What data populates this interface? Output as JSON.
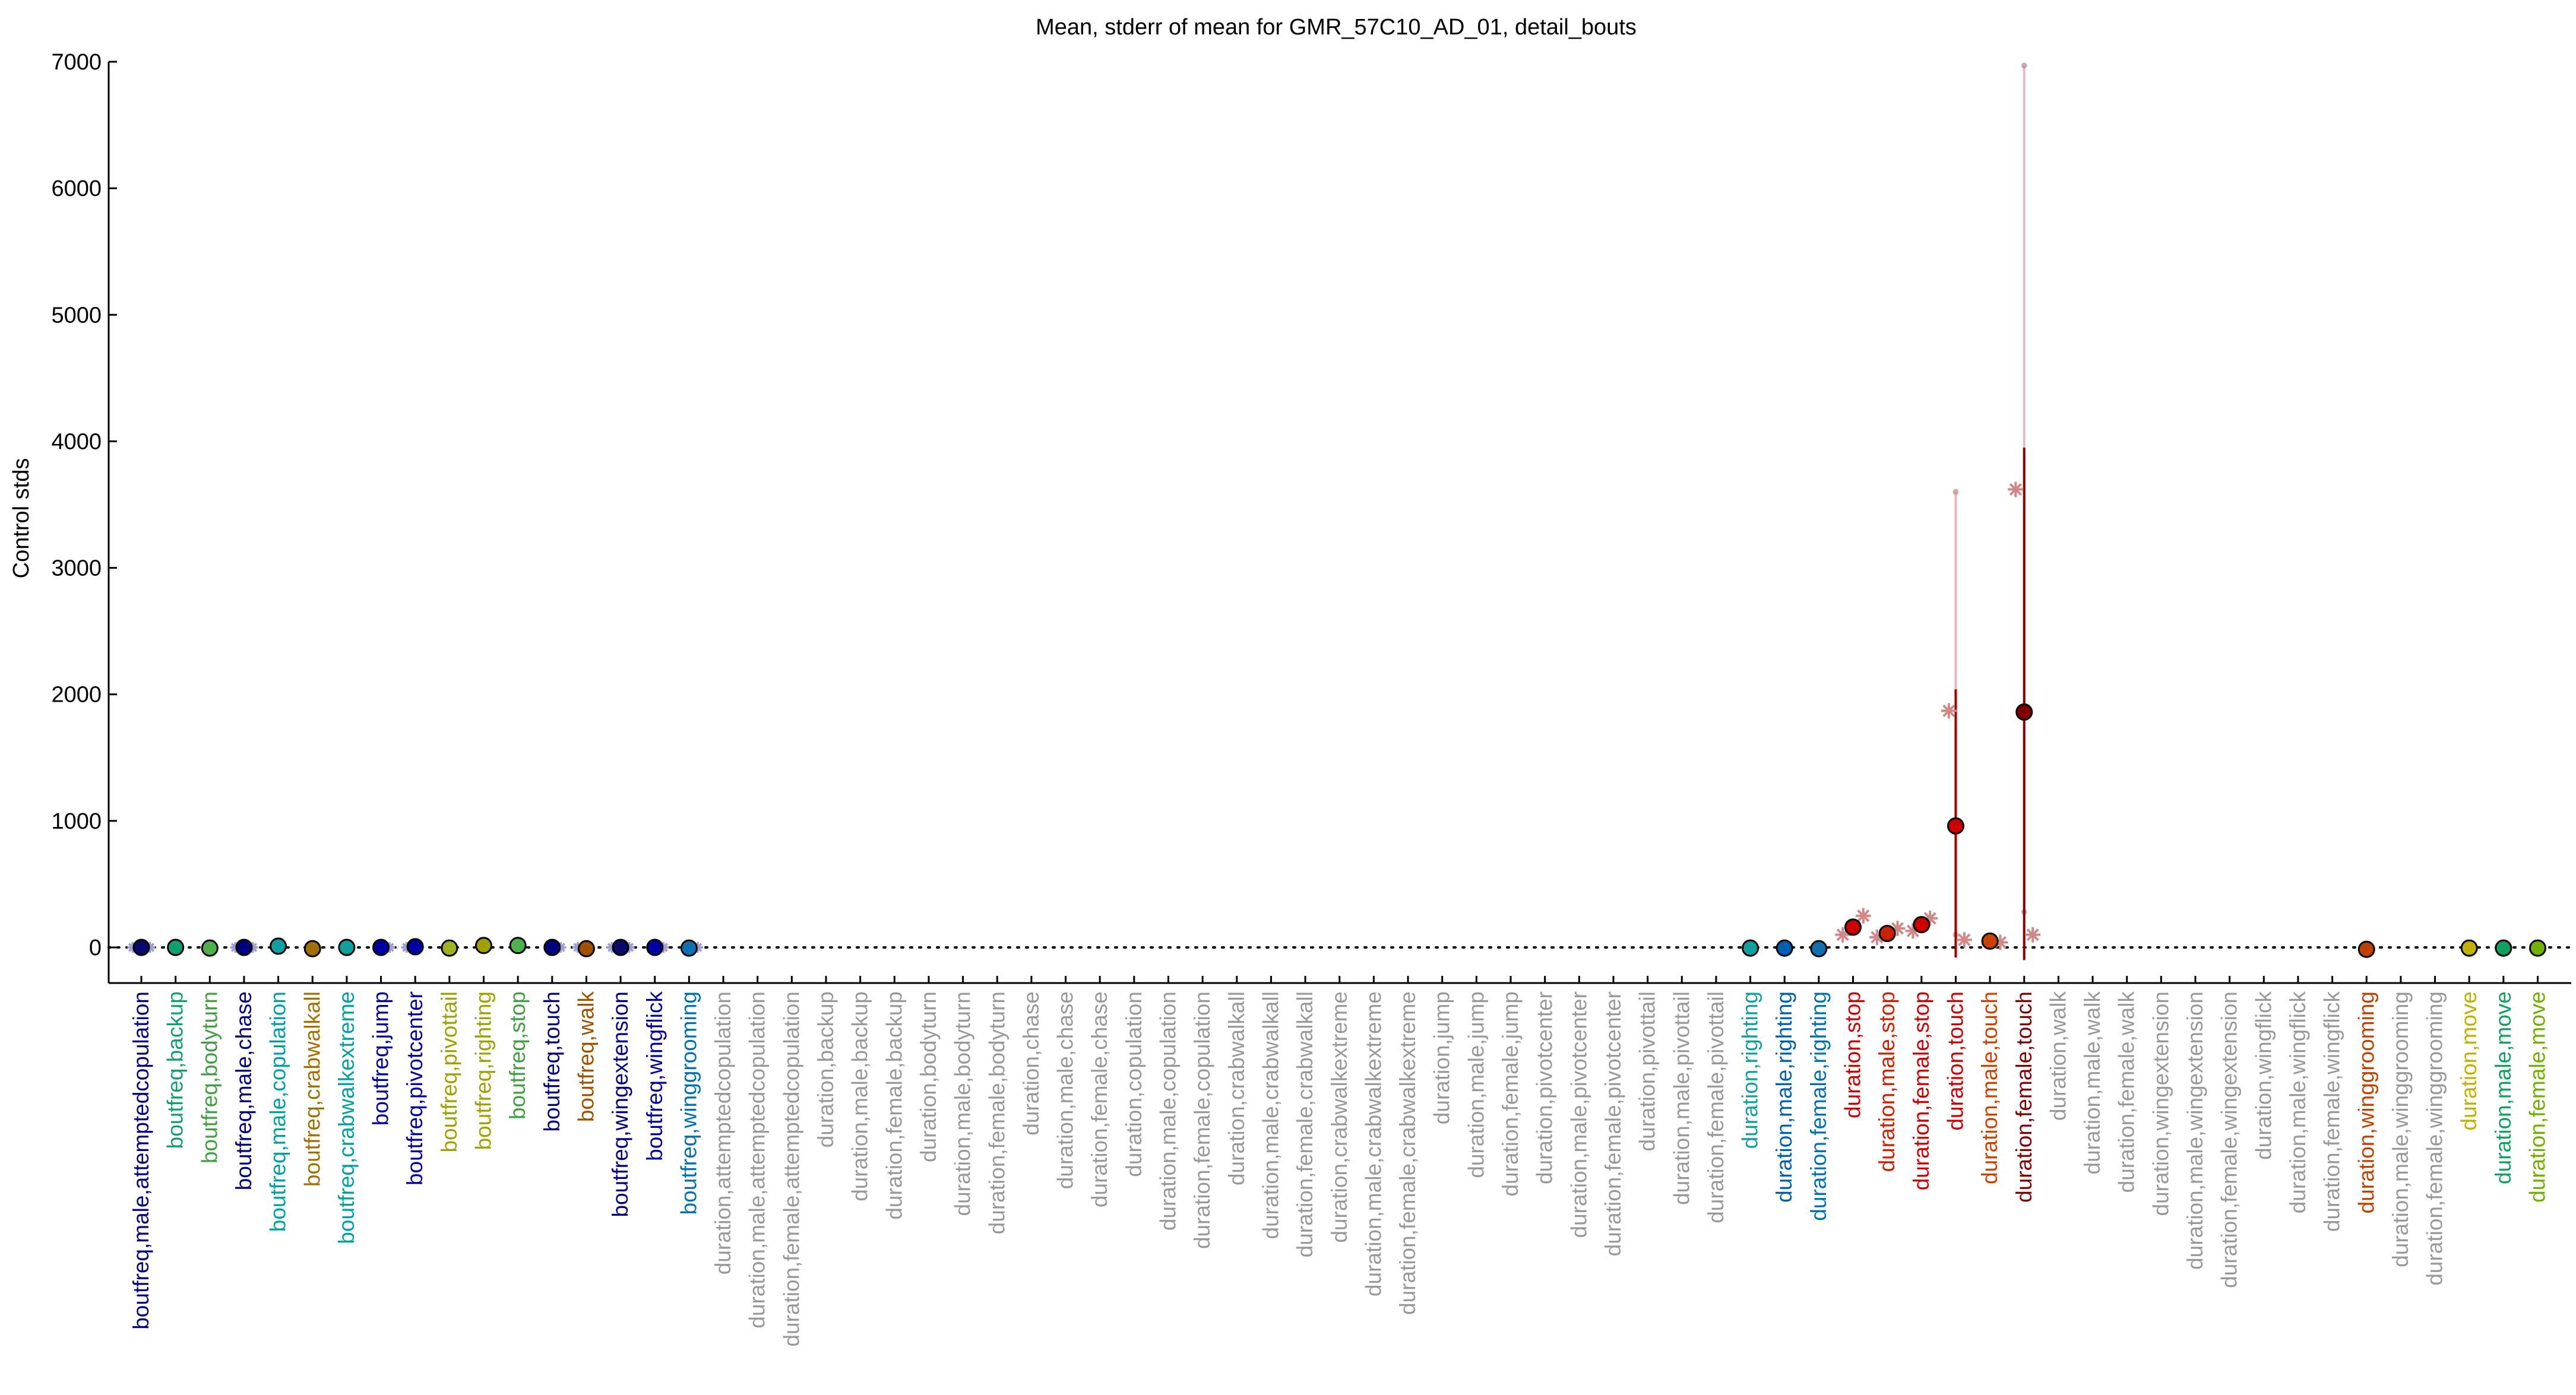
{
  "chart_data": {
    "type": "scatter",
    "title": "Mean, stderr of mean for GMR_57C10_AD_01, detail_bouts",
    "xlabel": "",
    "ylabel": "Control stds",
    "ylim": [
      -280,
      7000
    ],
    "yticks": [
      0,
      1000,
      2000,
      3000,
      4000,
      5000,
      6000,
      7000
    ],
    "reference_line": 0,
    "grid": false,
    "categories": [
      "boutfreq,male,attemptedcopulation",
      "boutfreq,backup",
      "boutfreq,bodyturn",
      "boutfreq,male,chase",
      "boutfreq,male,copulation",
      "boutfreq,crabwalkall",
      "boutfreq,crabwalkextreme",
      "boutfreq,jump",
      "boutfreq,pivotcenter",
      "boutfreq,pivottail",
      "boutfreq,righting",
      "boutfreq,stop",
      "boutfreq,touch",
      "boutfreq,walk",
      "boutfreq,wingextension",
      "boutfreq,wingflick",
      "boutfreq,winggrooming",
      "duration,attemptedcopulation",
      "duration,male,attemptedcopulation",
      "duration,female,attemptedcopulation",
      "duration,backup",
      "duration,male,backup",
      "duration,female,backup",
      "duration,bodyturn",
      "duration,male,bodyturn",
      "duration,female,bodyturn",
      "duration,chase",
      "duration,male,chase",
      "duration,female,chase",
      "duration,copulation",
      "duration,male,copulation",
      "duration,female,copulation",
      "duration,crabwalkall",
      "duration,male,crabwalkall",
      "duration,female,crabwalkall",
      "duration,crabwalkextreme",
      "duration,male,crabwalkextreme",
      "duration,female,crabwalkextreme",
      "duration,jump",
      "duration,male,jump",
      "duration,female,jump",
      "duration,pivotcenter",
      "duration,male,pivotcenter",
      "duration,female,pivotcenter",
      "duration,pivottail",
      "duration,male,pivottail",
      "duration,female,pivottail",
      "duration,righting",
      "duration,male,righting",
      "duration,female,righting",
      "duration,stop",
      "duration,male,stop",
      "duration,female,stop",
      "duration,touch",
      "duration,male,touch",
      "duration,female,touch",
      "duration,walk",
      "duration,male,walk",
      "duration,female,walk",
      "duration,wingextension",
      "duration,male,wingextension",
      "duration,female,wingextension",
      "duration,wingflick",
      "duration,male,wingflick",
      "duration,female,wingflick",
      "duration,winggrooming",
      "duration,male,winggrooming",
      "duration,female,winggrooming",
      "duration,move",
      "duration,male,move",
      "duration,female,move"
    ],
    "label_colors": [
      "#00007f",
      "#10a070",
      "#40a040",
      "#00007f",
      "#00a0a0",
      "#a07000",
      "#00a0a0",
      "#0000a0",
      "#0000a0",
      "#a0a000",
      "#a0a000",
      "#40a040",
      "#00007f",
      "#a05000",
      "#00007f",
      "#0000a0",
      "#0070b0",
      "#999999",
      "#999999",
      "#999999",
      "#999999",
      "#999999",
      "#999999",
      "#999999",
      "#999999",
      "#999999",
      "#999999",
      "#999999",
      "#999999",
      "#999999",
      "#999999",
      "#999999",
      "#999999",
      "#999999",
      "#999999",
      "#999999",
      "#999999",
      "#999999",
      "#999999",
      "#999999",
      "#999999",
      "#999999",
      "#999999",
      "#999999",
      "#999999",
      "#999999",
      "#999999",
      "#10a0a0",
      "#0060b0",
      "#0070b0",
      "#cc0000",
      "#cc2000",
      "#cc0000",
      "#cc0000",
      "#cc4000",
      "#800000",
      "#999999",
      "#999999",
      "#999999",
      "#999999",
      "#999999",
      "#999999",
      "#999999",
      "#999999",
      "#999999",
      "#c04000",
      "#999999",
      "#999999",
      "#c0b000",
      "#10a060",
      "#70b000"
    ],
    "series": [
      {
        "name": "mean",
        "points": [
          {
            "i": 0,
            "y": 0,
            "color": "#0a0a6a"
          },
          {
            "i": 1,
            "y": 0,
            "color": "#10a070"
          },
          {
            "i": 2,
            "y": -5,
            "color": "#50b050"
          },
          {
            "i": 3,
            "y": 0,
            "color": "#00007f"
          },
          {
            "i": 4,
            "y": 10,
            "color": "#10a0a0"
          },
          {
            "i": 5,
            "y": -10,
            "color": "#a07000"
          },
          {
            "i": 6,
            "y": 0,
            "color": "#10a0a0"
          },
          {
            "i": 7,
            "y": 0,
            "color": "#0000a0"
          },
          {
            "i": 8,
            "y": 5,
            "color": "#0000a0"
          },
          {
            "i": 9,
            "y": -5,
            "color": "#a0b020"
          },
          {
            "i": 10,
            "y": 15,
            "color": "#a0a000"
          },
          {
            "i": 11,
            "y": 15,
            "color": "#50b050"
          },
          {
            "i": 12,
            "y": 0,
            "color": "#00007f"
          },
          {
            "i": 13,
            "y": -10,
            "color": "#a05000"
          },
          {
            "i": 14,
            "y": 0,
            "color": "#0a0a6a"
          },
          {
            "i": 15,
            "y": 0,
            "color": "#0000a0"
          },
          {
            "i": 16,
            "y": -5,
            "color": "#1070b0"
          },
          {
            "i": 47,
            "y": -5,
            "color": "#10a0a0"
          },
          {
            "i": 48,
            "y": -5,
            "color": "#0060b0"
          },
          {
            "i": 49,
            "y": -10,
            "color": "#1070b0"
          },
          {
            "i": 50,
            "y": 160,
            "color": "#cc0000"
          },
          {
            "i": 51,
            "y": 110,
            "color": "#cc2000"
          },
          {
            "i": 52,
            "y": 180,
            "color": "#cc0000"
          },
          {
            "i": 53,
            "y": 960,
            "color": "#cc0000"
          },
          {
            "i": 54,
            "y": 50,
            "color": "#cc4000"
          },
          {
            "i": 55,
            "y": 1860,
            "color": "#800000"
          },
          {
            "i": 65,
            "y": -15,
            "color": "#c04000"
          },
          {
            "i": 68,
            "y": -5,
            "color": "#c0b000"
          },
          {
            "i": 69,
            "y": -5,
            "color": "#10a060"
          },
          {
            "i": 70,
            "y": -5,
            "color": "#70b000"
          }
        ]
      },
      {
        "name": "stderr",
        "bars": [
          {
            "i": 53,
            "low": -80,
            "high": 2040,
            "color": "#a00000"
          },
          {
            "i": 55,
            "low": -100,
            "high": 3950,
            "color": "#8b0000"
          }
        ]
      },
      {
        "name": "light range",
        "bars": [
          {
            "i": 53,
            "low": 100,
            "high": 3600,
            "color": "#e8b8b8"
          },
          {
            "i": 55,
            "low": 280,
            "high": 6970,
            "color": "#e0c0c8"
          }
        ]
      },
      {
        "name": "individual",
        "stars": [
          {
            "i": 50,
            "y": 100,
            "dx": -0.3
          },
          {
            "i": 50,
            "y": 250,
            "dx": 0.3
          },
          {
            "i": 51,
            "y": 150,
            "dx": 0.3
          },
          {
            "i": 51,
            "y": 80,
            "dx": -0.3
          },
          {
            "i": 52,
            "y": 130,
            "dx": -0.25
          },
          {
            "i": 52,
            "y": 230,
            "dx": 0.25
          },
          {
            "i": 53,
            "y": 1870,
            "dx": -0.2
          },
          {
            "i": 53,
            "y": 60,
            "dx": 0.25
          },
          {
            "i": 54,
            "y": 40,
            "dx": 0.3
          },
          {
            "i": 55,
            "y": 3620,
            "dx": -0.25
          },
          {
            "i": 55,
            "y": 100,
            "dx": 0.25
          },
          {
            "i": 0,
            "y": 0,
            "dx": -0.25
          },
          {
            "i": 0,
            "y": 0,
            "dx": 0.25
          },
          {
            "i": 3,
            "y": 0,
            "dx": -0.25
          },
          {
            "i": 3,
            "y": 0,
            "dx": 0.25
          },
          {
            "i": 7,
            "y": 0,
            "dx": 0.25
          },
          {
            "i": 8,
            "y": 0,
            "dx": -0.25
          },
          {
            "i": 12,
            "y": 0,
            "dx": 0.25
          },
          {
            "i": 13,
            "y": 0,
            "dx": -0.25
          },
          {
            "i": 14,
            "y": 0,
            "dx": -0.25
          },
          {
            "i": 14,
            "y": 0,
            "dx": 0.25
          },
          {
            "i": 15,
            "y": 0,
            "dx": 0.25
          },
          {
            "i": 16,
            "y": 0,
            "dx": 0.25
          }
        ]
      }
    ]
  }
}
